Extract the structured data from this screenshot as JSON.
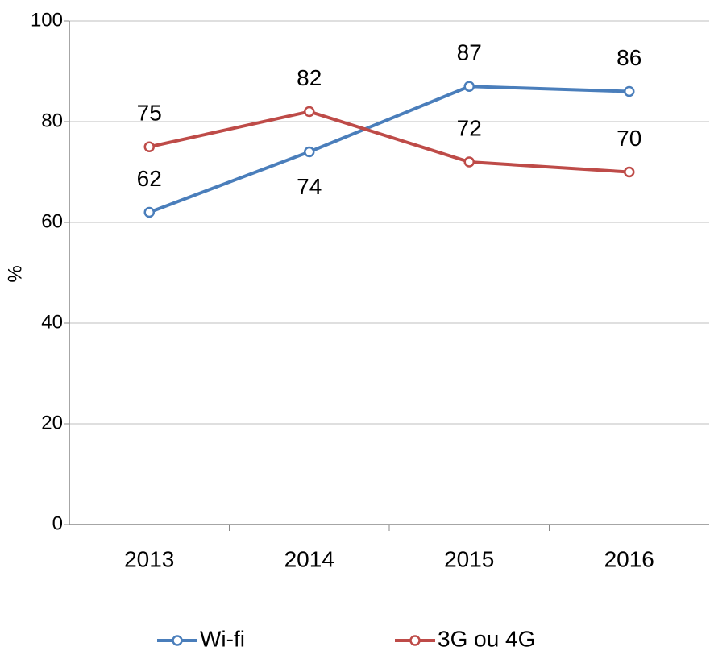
{
  "chart_data": {
    "type": "line",
    "y_label": "%",
    "categories": [
      "2013",
      "2014",
      "2015",
      "2016"
    ],
    "series": [
      {
        "name": "Wi-fi",
        "color": "#4a7ebb",
        "values": [
          62,
          74,
          87,
          86
        ]
      },
      {
        "name": "3G ou 4G",
        "color": "#be4b48",
        "values": [
          75,
          82,
          72,
          70
        ]
      }
    ],
    "ylim": [
      0,
      100
    ],
    "yticks": [
      0,
      20,
      40,
      60,
      80,
      100
    ],
    "grid": true,
    "legend": "bottom"
  }
}
